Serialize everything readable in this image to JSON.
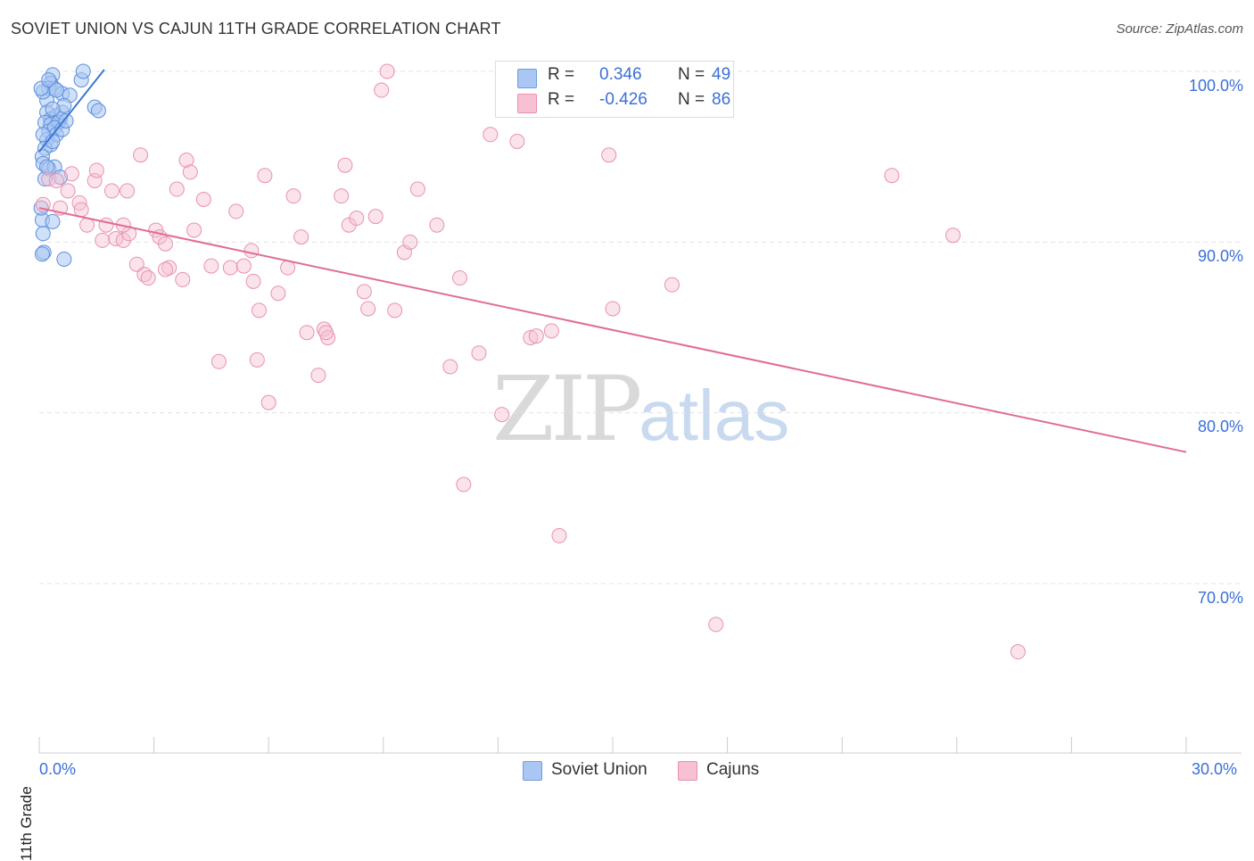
{
  "title": "SOVIET UNION VS CAJUN 11TH GRADE CORRELATION CHART",
  "source": "Source: ZipAtlas.com",
  "watermark": {
    "left": "ZIP",
    "right": "atlas"
  },
  "stats": {
    "rows": [
      {
        "label": "R =",
        "r": "0.346",
        "n_label": "N =",
        "n": "49",
        "color": "#aac6f2",
        "border": "#6f9de0"
      },
      {
        "label": "R =",
        "r": "-0.426",
        "n_label": "N =",
        "n": "86",
        "color": "#f7c1d3",
        "border": "#e88fae"
      }
    ]
  },
  "legend": {
    "items": [
      {
        "label": "Soviet Union",
        "color": "#aac6f2",
        "border": "#6f9de0"
      },
      {
        "label": "Cajuns",
        "color": "#f7c1d3",
        "border": "#e88fae"
      }
    ]
  },
  "colors": {
    "blue": "#3a78d8",
    "pink": "#e06b99",
    "grid": "#e3e3e3"
  },
  "chart_data": {
    "type": "scatter",
    "title": "SOVIET UNION VS CAJUN 11TH GRADE CORRELATION CHART",
    "xlabel": "",
    "ylabel": "11th Grade",
    "xlim": [
      0,
      30
    ],
    "ylim": [
      60,
      101
    ],
    "x_tick_labels": [
      {
        "value": 0,
        "label": "0.0%"
      },
      {
        "value": 30,
        "label": "30.0%"
      }
    ],
    "y_tick_labels": [
      {
        "value": 100,
        "label": "100.0%"
      },
      {
        "value": 90,
        "label": "90.0%"
      },
      {
        "value": 80,
        "label": "80.0%"
      },
      {
        "value": 70,
        "label": "70.0%"
      }
    ],
    "grid": true,
    "legend_position": "bottom-center",
    "series": [
      {
        "name": "Soviet Union",
        "color": "#3a78d8",
        "trend": {
          "x": [
            0.0,
            1.7
          ],
          "y": [
            95.3,
            100.1
          ]
        },
        "points": [
          [
            0.35,
            99.8
          ],
          [
            0.3,
            99.3
          ],
          [
            0.25,
            99.0
          ],
          [
            0.4,
            99.0
          ],
          [
            0.6,
            98.7
          ],
          [
            0.8,
            98.6
          ],
          [
            1.1,
            99.5
          ],
          [
            1.15,
            100.0
          ],
          [
            0.2,
            98.3
          ],
          [
            0.1,
            98.8
          ],
          [
            0.2,
            97.6
          ],
          [
            0.3,
            97.2
          ],
          [
            0.45,
            97.4
          ],
          [
            0.55,
            97.2
          ],
          [
            0.15,
            97.0
          ],
          [
            0.3,
            96.9
          ],
          [
            0.5,
            97.0
          ],
          [
            0.6,
            97.6
          ],
          [
            0.25,
            96.5
          ],
          [
            0.4,
            96.7
          ],
          [
            0.2,
            96.0
          ],
          [
            0.3,
            95.7
          ],
          [
            0.15,
            95.5
          ],
          [
            0.08,
            95.0
          ],
          [
            0.1,
            94.6
          ],
          [
            0.25,
            94.3
          ],
          [
            0.4,
            94.4
          ],
          [
            0.15,
            93.7
          ],
          [
            0.55,
            93.8
          ],
          [
            0.08,
            91.3
          ],
          [
            0.35,
            91.2
          ],
          [
            0.1,
            90.5
          ],
          [
            0.12,
            89.4
          ],
          [
            0.65,
            89.0
          ],
          [
            0.08,
            89.3
          ],
          [
            1.45,
            97.9
          ],
          [
            1.55,
            97.7
          ],
          [
            0.65,
            98.0
          ],
          [
            0.45,
            96.3
          ],
          [
            0.1,
            96.3
          ],
          [
            0.35,
            97.8
          ],
          [
            0.05,
            99.0
          ],
          [
            0.25,
            99.5
          ],
          [
            0.45,
            98.9
          ],
          [
            0.6,
            96.6
          ],
          [
            0.2,
            94.4
          ],
          [
            0.05,
            92.0
          ],
          [
            0.7,
            97.1
          ],
          [
            0.35,
            95.9
          ]
        ]
      },
      {
        "name": "Cajuns",
        "color": "#e06b99",
        "trend": {
          "x": [
            0.0,
            30.0
          ],
          "y": [
            92.0,
            77.7
          ]
        },
        "points": [
          [
            0.1,
            92.2
          ],
          [
            0.25,
            93.7
          ],
          [
            0.45,
            93.6
          ],
          [
            0.75,
            93.0
          ],
          [
            0.85,
            94.0
          ],
          [
            0.55,
            92.0
          ],
          [
            1.05,
            92.3
          ],
          [
            1.1,
            91.9
          ],
          [
            1.25,
            91.0
          ],
          [
            1.45,
            93.6
          ],
          [
            1.5,
            94.2
          ],
          [
            1.65,
            90.1
          ],
          [
            1.75,
            91.0
          ],
          [
            1.9,
            93.0
          ],
          [
            2.0,
            90.2
          ],
          [
            2.2,
            90.1
          ],
          [
            2.3,
            93.0
          ],
          [
            2.35,
            90.5
          ],
          [
            2.55,
            88.7
          ],
          [
            2.65,
            95.1
          ],
          [
            2.75,
            88.1
          ],
          [
            2.85,
            87.9
          ],
          [
            3.05,
            90.7
          ],
          [
            3.15,
            90.3
          ],
          [
            3.3,
            89.9
          ],
          [
            3.4,
            88.5
          ],
          [
            3.6,
            93.1
          ],
          [
            3.75,
            87.8
          ],
          [
            3.85,
            94.8
          ],
          [
            3.95,
            94.1
          ],
          [
            4.05,
            90.7
          ],
          [
            4.3,
            92.5
          ],
          [
            4.5,
            88.6
          ],
          [
            4.7,
            83.0
          ],
          [
            5.0,
            88.5
          ],
          [
            5.15,
            91.8
          ],
          [
            5.35,
            88.6
          ],
          [
            5.55,
            89.5
          ],
          [
            5.6,
            87.7
          ],
          [
            5.75,
            86.0
          ],
          [
            5.9,
            93.9
          ],
          [
            6.0,
            80.6
          ],
          [
            6.25,
            87.0
          ],
          [
            6.5,
            88.5
          ],
          [
            6.65,
            92.7
          ],
          [
            6.85,
            90.3
          ],
          [
            7.0,
            84.7
          ],
          [
            7.3,
            82.2
          ],
          [
            7.45,
            84.9
          ],
          [
            7.55,
            84.4
          ],
          [
            7.9,
            92.7
          ],
          [
            8.0,
            94.5
          ],
          [
            8.1,
            91.0
          ],
          [
            8.3,
            91.4
          ],
          [
            8.5,
            87.1
          ],
          [
            8.6,
            86.1
          ],
          [
            8.8,
            91.5
          ],
          [
            8.95,
            98.9
          ],
          [
            9.1,
            100.0
          ],
          [
            9.3,
            86.0
          ],
          [
            9.55,
            89.4
          ],
          [
            9.7,
            90.0
          ],
          [
            9.9,
            93.1
          ],
          [
            10.4,
            91.0
          ],
          [
            10.75,
            82.7
          ],
          [
            11.0,
            87.9
          ],
          [
            11.1,
            75.8
          ],
          [
            11.5,
            83.5
          ],
          [
            11.8,
            96.3
          ],
          [
            12.1,
            79.9
          ],
          [
            12.5,
            95.9
          ],
          [
            12.85,
            84.4
          ],
          [
            13.0,
            84.5
          ],
          [
            13.4,
            84.8
          ],
          [
            13.6,
            72.8
          ],
          [
            14.9,
            95.1
          ],
          [
            15.0,
            86.1
          ],
          [
            16.55,
            87.5
          ],
          [
            17.7,
            67.6
          ],
          [
            22.3,
            93.9
          ],
          [
            23.9,
            90.4
          ],
          [
            25.6,
            66.0
          ],
          [
            2.2,
            91.0
          ],
          [
            3.3,
            88.4
          ],
          [
            5.7,
            83.1
          ],
          [
            7.5,
            84.7
          ]
        ]
      }
    ]
  }
}
